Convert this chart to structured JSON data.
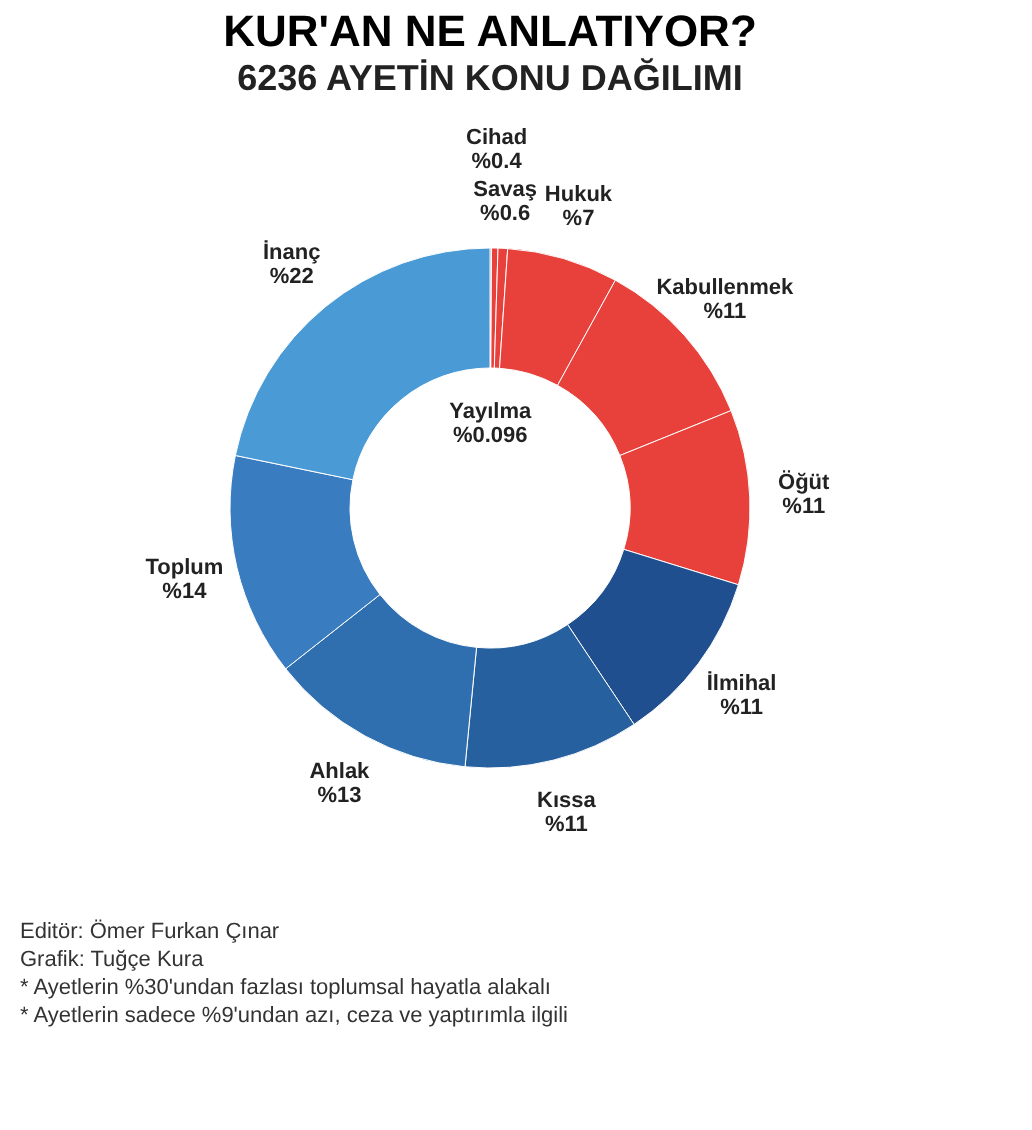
{
  "chart_data": {
    "type": "donut",
    "title": "KUR'AN NE ANLATIYOR?",
    "subtitle": "6236 AYETİN KONU DAĞILIMI",
    "categories": [
      "Yayılma",
      "Cihad",
      "Savaş",
      "Hukuk",
      "Kabullenmek",
      "Öğüt",
      "İlmihal",
      "Kıssa",
      "Ahlak",
      "Toplum",
      "İnanç"
    ],
    "values": [
      0.096,
      0.4,
      0.6,
      7,
      11,
      11,
      11,
      11,
      13,
      14,
      22
    ],
    "value_labels": [
      "%0.096",
      "%0.4",
      "%0.6",
      "%7",
      "%11",
      "%11",
      "%11",
      "%11",
      "%13",
      "%14",
      "%22"
    ],
    "colors": [
      "#e8413c",
      "#e8413c",
      "#e8413c",
      "#e8413c",
      "#e8413c",
      "#e8413c",
      "#1f4f8f",
      "#27609f",
      "#2f6fb0",
      "#3a7cc0",
      "#4a9ad6"
    ],
    "annotations": [
      "Editör: Ömer Furkan Çınar",
      "Grafik: Tuğçe Kura",
      "* Ayetlerin %30'undan fazlası toplumsal hayatla alakalı",
      "* Ayetlerin sadece %9'undan azı, ceza ve yaptırımla ilgili"
    ]
  }
}
